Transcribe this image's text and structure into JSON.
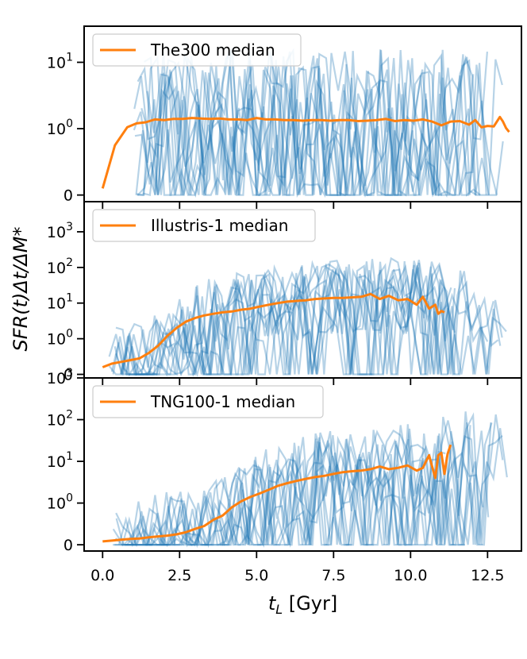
{
  "chart_data": {
    "type": "line",
    "shared_x_label": "t_L [Gyr]",
    "shared_y_label": "SFR(t)Δt/ΔM*",
    "x_ticks": [
      "0.0",
      "2.5",
      "5.0",
      "7.5",
      "10.0",
      "12.5"
    ],
    "xlim": [
      -0.6,
      13.6
    ],
    "colors": {
      "median": "#ff7f0e",
      "individual": "#1f77b4"
    },
    "panels": [
      {
        "legend": "The300 median",
        "legend_position": "upper-left",
        "y_scale": "symlog",
        "ylim": [
          -0.1,
          35
        ],
        "y_ticks": [
          {
            "value": 10,
            "label": "10",
            "exp": "1"
          },
          {
            "value": 1,
            "label": "10",
            "exp": "0"
          },
          {
            "value": 0,
            "label": "0",
            "exp": ""
          }
        ],
        "median": {
          "x": [
            0.0,
            0.4,
            0.8,
            1.1,
            1.4,
            1.7,
            2.0,
            2.3,
            2.6,
            2.9,
            3.2,
            3.5,
            3.8,
            4.1,
            4.4,
            4.7,
            5.0,
            5.3,
            5.6,
            5.9,
            6.2,
            6.5,
            6.8,
            7.1,
            7.4,
            7.7,
            8.0,
            8.3,
            8.6,
            8.9,
            9.2,
            9.5,
            9.8,
            10.1,
            10.4,
            10.7,
            11.0,
            11.3,
            11.6,
            11.9,
            12.1,
            12.3,
            12.5,
            12.7,
            12.9,
            13.0,
            13.1,
            13.2
          ],
          "y": [
            0.1,
            0.75,
            1.05,
            1.2,
            1.25,
            1.38,
            1.35,
            1.4,
            1.4,
            1.45,
            1.42,
            1.4,
            1.42,
            1.38,
            1.38,
            1.35,
            1.45,
            1.38,
            1.38,
            1.35,
            1.35,
            1.32,
            1.35,
            1.35,
            1.32,
            1.35,
            1.35,
            1.3,
            1.32,
            1.35,
            1.4,
            1.3,
            1.35,
            1.32,
            1.38,
            1.28,
            1.12,
            1.28,
            1.3,
            1.15,
            1.35,
            1.05,
            1.1,
            1.08,
            1.5,
            1.28,
            1.02,
            0.95
          ]
        },
        "individual_series_count": 12,
        "individual_seed": 3,
        "individual_x_start": 1.0
      },
      {
        "legend": "Illustris-1 median",
        "legend_position": "upper-left",
        "y_scale": "symlog",
        "ylim": [
          -0.1,
          7000
        ],
        "y_ticks": [
          {
            "value": 1000,
            "label": "10",
            "exp": "3"
          },
          {
            "value": 100,
            "label": "10",
            "exp": "2"
          },
          {
            "value": 10,
            "label": "10",
            "exp": "1"
          },
          {
            "value": 1,
            "label": "10",
            "exp": "0"
          },
          {
            "value": 0,
            "label": "0",
            "exp": ""
          }
        ],
        "median": {
          "x": [
            0.0,
            0.3,
            0.6,
            0.9,
            1.2,
            1.5,
            1.8,
            2.1,
            2.4,
            2.7,
            3.0,
            3.3,
            3.6,
            3.9,
            4.2,
            4.5,
            4.8,
            5.1,
            5.4,
            5.7,
            6.0,
            6.3,
            6.6,
            6.9,
            7.2,
            7.5,
            7.8,
            8.1,
            8.4,
            8.7,
            9.0,
            9.3,
            9.6,
            9.9,
            10.2,
            10.4,
            10.6,
            10.8,
            10.9,
            11.0,
            11.1
          ],
          "y": [
            0.2,
            0.3,
            0.35,
            0.4,
            0.45,
            0.6,
            0.8,
            1.2,
            2.0,
            3.0,
            3.8,
            4.5,
            5.0,
            5.5,
            5.8,
            6.5,
            7.0,
            8.0,
            9.0,
            10.0,
            11.0,
            11.5,
            12.0,
            13.0,
            13.5,
            14.0,
            14.0,
            14.5,
            15.0,
            18.0,
            13.0,
            16.0,
            12.0,
            13.0,
            9.0,
            15.0,
            7.0,
            9.0,
            5.0,
            6.0,
            5.5
          ]
        },
        "individual_series_count": 12,
        "individual_seed": 11,
        "individual_x_start": 0.2
      },
      {
        "legend": "TNG100-1 median",
        "legend_position": "upper-left",
        "y_scale": "symlog",
        "ylim": [
          -0.15,
          1000
        ],
        "y_ticks": [
          {
            "value": 1000,
            "label": "10",
            "exp": "3"
          },
          {
            "value": 100,
            "label": "10",
            "exp": "2"
          },
          {
            "value": 10,
            "label": "10",
            "exp": "1"
          },
          {
            "value": 1,
            "label": "10",
            "exp": "0"
          },
          {
            "value": 0,
            "label": "0",
            "exp": ""
          }
        ],
        "median": {
          "x": [
            0.0,
            0.3,
            0.6,
            0.9,
            1.2,
            1.5,
            1.8,
            2.1,
            2.4,
            2.7,
            3.0,
            3.3,
            3.6,
            3.9,
            4.2,
            4.5,
            4.8,
            5.1,
            5.4,
            5.7,
            6.0,
            6.3,
            6.6,
            6.9,
            7.2,
            7.5,
            7.8,
            8.1,
            8.4,
            8.7,
            9.0,
            9.3,
            9.6,
            9.9,
            10.2,
            10.4,
            10.6,
            10.8,
            10.9,
            11.0,
            11.1,
            11.2,
            11.3
          ],
          "y": [
            0.08,
            0.1,
            0.12,
            0.14,
            0.15,
            0.18,
            0.2,
            0.22,
            0.25,
            0.3,
            0.38,
            0.45,
            0.6,
            0.7,
            0.9,
            1.1,
            1.4,
            1.7,
            2.1,
            2.6,
            3.0,
            3.4,
            3.8,
            4.2,
            4.5,
            5.0,
            5.5,
            5.8,
            6.0,
            6.5,
            7.5,
            6.5,
            7.0,
            8.0,
            6.0,
            7.0,
            14.0,
            4.0,
            14.0,
            16.0,
            5.0,
            15.0,
            25.0
          ]
        },
        "individual_series_count": 12,
        "individual_seed": 29,
        "individual_x_start": 0.3
      }
    ]
  }
}
